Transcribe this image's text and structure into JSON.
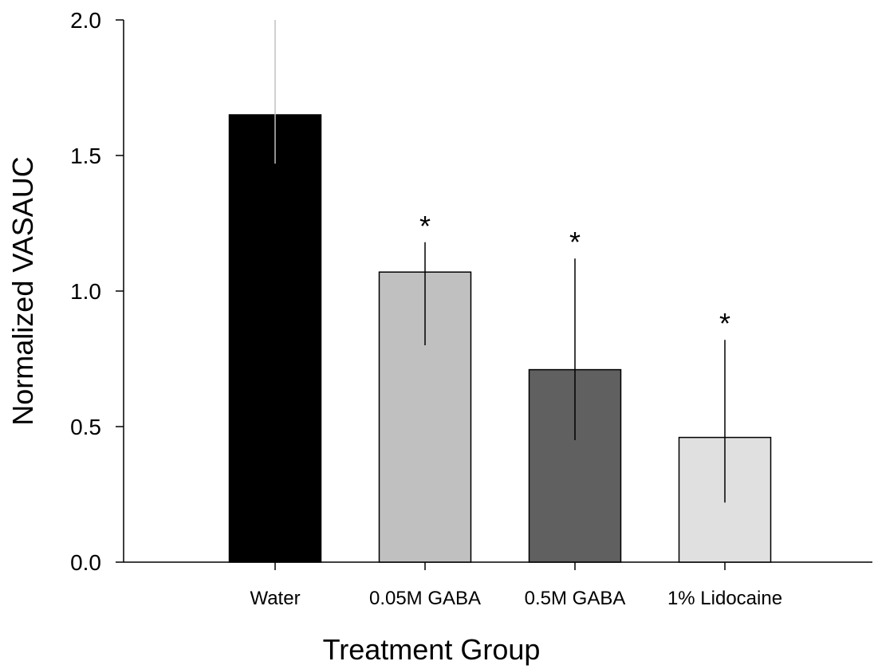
{
  "chart_data": {
    "type": "bar",
    "title": "",
    "xlabel": "Treatment Group",
    "ylabel": "Normalized VASAUC",
    "ylim": [
      0,
      2.0
    ],
    "yticks": [
      "0.0",
      "0.5",
      "1.0",
      "1.5",
      "2.0"
    ],
    "ytick_values": [
      0,
      0.5,
      1.0,
      1.5,
      2.0
    ],
    "grid": false,
    "categories": [
      "Water",
      "0.05M GABA",
      "0.5M GABA",
      "1% Lidocaine"
    ],
    "values": [
      1.65,
      1.07,
      0.71,
      0.46
    ],
    "error_upper": [
      2.0,
      1.18,
      1.12,
      0.82
    ],
    "error_lower": [
      1.47,
      0.8,
      0.45,
      0.22
    ],
    "significance": [
      "",
      "*",
      "*",
      "*"
    ],
    "colors": [
      "#000000",
      "#c0c0c0",
      "#606060",
      "#e0e0e0"
    ],
    "error_colors": [
      "#c0c0c0",
      "#000000",
      "#000000",
      "#000000"
    ]
  }
}
